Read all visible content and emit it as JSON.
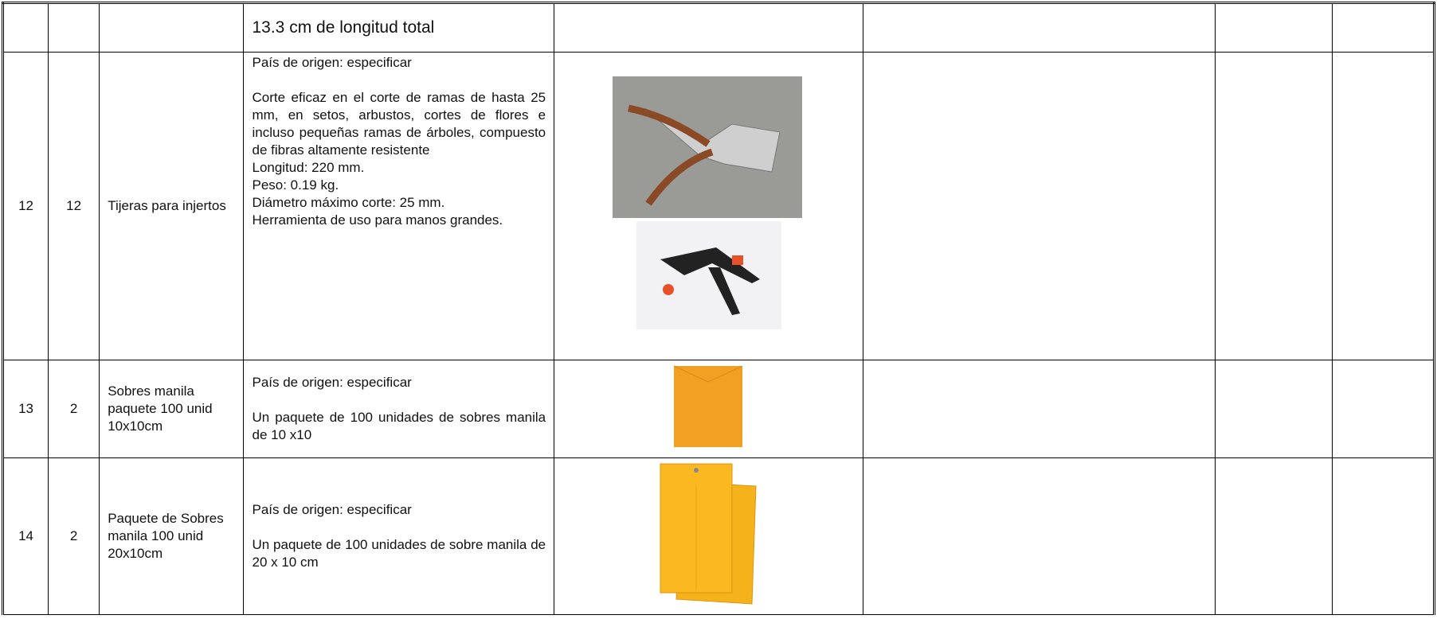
{
  "table": {
    "rows": [
      {
        "description": [
          "13.3 cm de longitud total"
        ]
      },
      {
        "item": "12",
        "quantity": "12",
        "name": "Tijeras para injertos",
        "description": [
          "País de origen: especificar",
          "Corte eficaz en el corte de ramas de hasta 25 mm, en setos, arbustos, cortes de flores e incluso pequeñas ramas de árboles, compuesto de fibras altamente resistente",
          "Longitud: 220 mm.",
          "Peso: 0.19 kg.",
          "Diámetro máximo corte: 25 mm.",
          "Herramienta de uso para manos grandes."
        ]
      },
      {
        "item": "13",
        "quantity": "2",
        "name": "Sobres manila paquete 100 unid 10x10cm",
        "description": [
          "País de origen: especificar",
          "Un paquete de 100 unidades de sobres manila de  10 x10"
        ]
      },
      {
        "item": "14",
        "quantity": "2",
        "name": "Paquete de Sobres manila 100 unid 20x10cm",
        "description": [
          "País de origen: especificar",
          "Un paquete de 100 unidades de sobre manila de 20 x 10 cm"
        ]
      }
    ]
  }
}
